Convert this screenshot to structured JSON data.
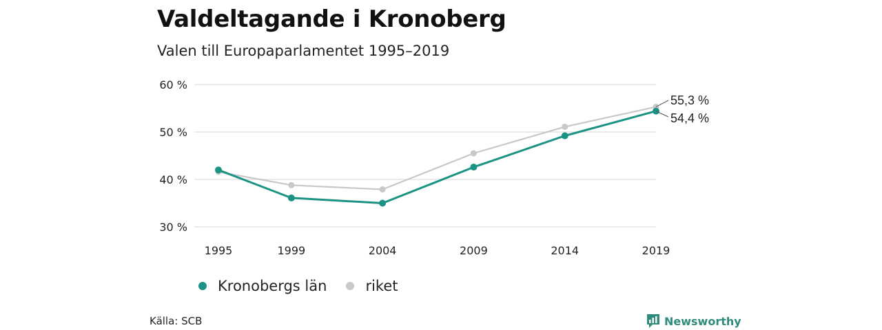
{
  "title": "Valdeltagande i Kronoberg",
  "subtitle": "Valen till Europaparlamentet 1995–2019",
  "source": "Källa: SCB",
  "brand": {
    "name": "Newsworthy",
    "icon": "newsworthy-logo-icon"
  },
  "colors": {
    "kronoberg": "#1a9384",
    "riket": "#c8c8c8",
    "grid": "#dddddd"
  },
  "chart_data": {
    "type": "line",
    "x": [
      1995,
      1999,
      2004,
      2009,
      2014,
      2019
    ],
    "x_tick_labels": [
      "1995",
      "1999",
      "2004",
      "2009",
      "2014",
      "2019"
    ],
    "ylim": [
      30,
      60
    ],
    "y_ticks": [
      30,
      40,
      50,
      60
    ],
    "y_tick_labels": [
      "30 %",
      "40 %",
      "50 %",
      "60 %"
    ],
    "grid": true,
    "legend_position": "bottom-left",
    "series": [
      {
        "name": "Kronobergs län",
        "color": "#1a9384",
        "values": [
          42.0,
          36.1,
          35.0,
          42.6,
          49.2,
          54.4
        ],
        "end_label": "54,4 %"
      },
      {
        "name": "riket",
        "color": "#c8c8c8",
        "values": [
          41.6,
          38.8,
          37.9,
          45.5,
          51.1,
          55.3
        ],
        "end_label": "55,3 %"
      }
    ]
  }
}
